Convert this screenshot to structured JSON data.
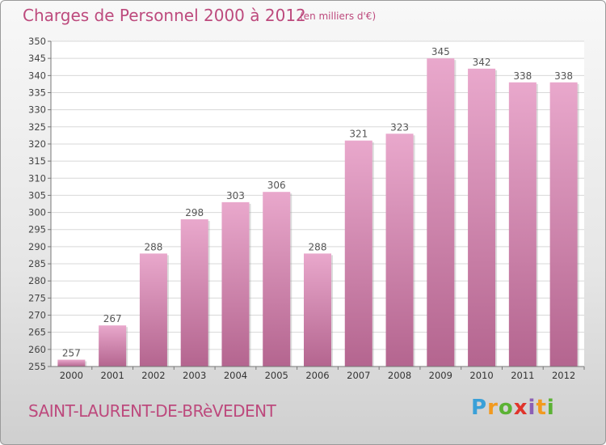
{
  "header": {
    "title": "Charges de Personnel 2000 à 2012",
    "unit": "(en milliers d'€)"
  },
  "footer": {
    "commune": "SAINT-LAURENT-DE-BRèVEDENT",
    "logo": "Proxiti",
    "logo_letters": [
      "P",
      "r",
      "o",
      "x",
      "i",
      "t",
      "i"
    ]
  },
  "colors": {
    "bar_top": "#e9a8cc",
    "bar_bottom": "#b4658f",
    "text_accent": "#bd4a7d"
  },
  "chart_data": {
    "type": "bar",
    "categories": [
      "2000",
      "2001",
      "2002",
      "2003",
      "2004",
      "2005",
      "2006",
      "2007",
      "2008",
      "2009",
      "2010",
      "2011",
      "2012"
    ],
    "values": [
      257,
      267,
      288,
      298,
      303,
      306,
      288,
      321,
      323,
      345,
      342,
      338,
      338
    ],
    "data_labels": [
      "257",
      "267",
      "288",
      "298",
      "303",
      "306",
      "288",
      "321",
      "323",
      "345",
      "342",
      "338",
      "338"
    ],
    "ylim": [
      255,
      350
    ],
    "yticks": [
      255,
      260,
      265,
      270,
      275,
      280,
      285,
      290,
      295,
      300,
      305,
      310,
      315,
      320,
      325,
      330,
      335,
      340,
      345,
      350
    ],
    "grid": true,
    "legend": "none"
  }
}
